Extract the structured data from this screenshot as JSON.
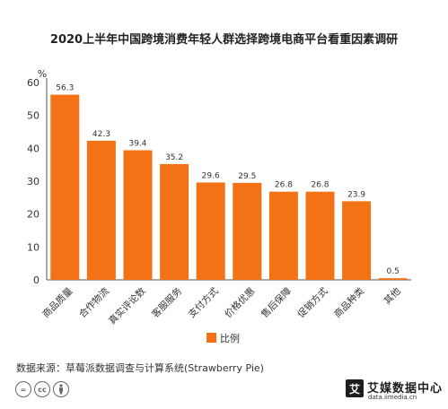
{
  "chart_data": {
    "type": "bar",
    "title": "2020上半年中国跨境消费年轻人群选择跨境电商平台看重因素调研",
    "ylabel": "%",
    "ylim": [
      0,
      60
    ],
    "yticks": [
      0,
      10,
      20,
      30,
      40,
      50,
      60
    ],
    "categories": [
      "商品质量",
      "合作物流",
      "真实评论数",
      "客服服务",
      "支付方式",
      "价格优惠",
      "售后保障",
      "促销方式",
      "商品种类",
      "其他"
    ],
    "series": [
      {
        "name": "比例",
        "values": [
          56.3,
          42.3,
          39.4,
          35.2,
          29.6,
          29.5,
          26.8,
          26.8,
          23.9,
          0.5
        ],
        "color": "#f27215"
      }
    ],
    "legend_position": "bottom",
    "grid": false
  },
  "source": "数据来源：草莓派数据调查与计算系统(Strawberry Pie)",
  "license_icons": [
    "equals-icon",
    "cc-icon",
    "by-icon"
  ],
  "brand": {
    "mark": "艾",
    "name": "艾媒数据中心",
    "url": "data.iimedia.cn"
  }
}
